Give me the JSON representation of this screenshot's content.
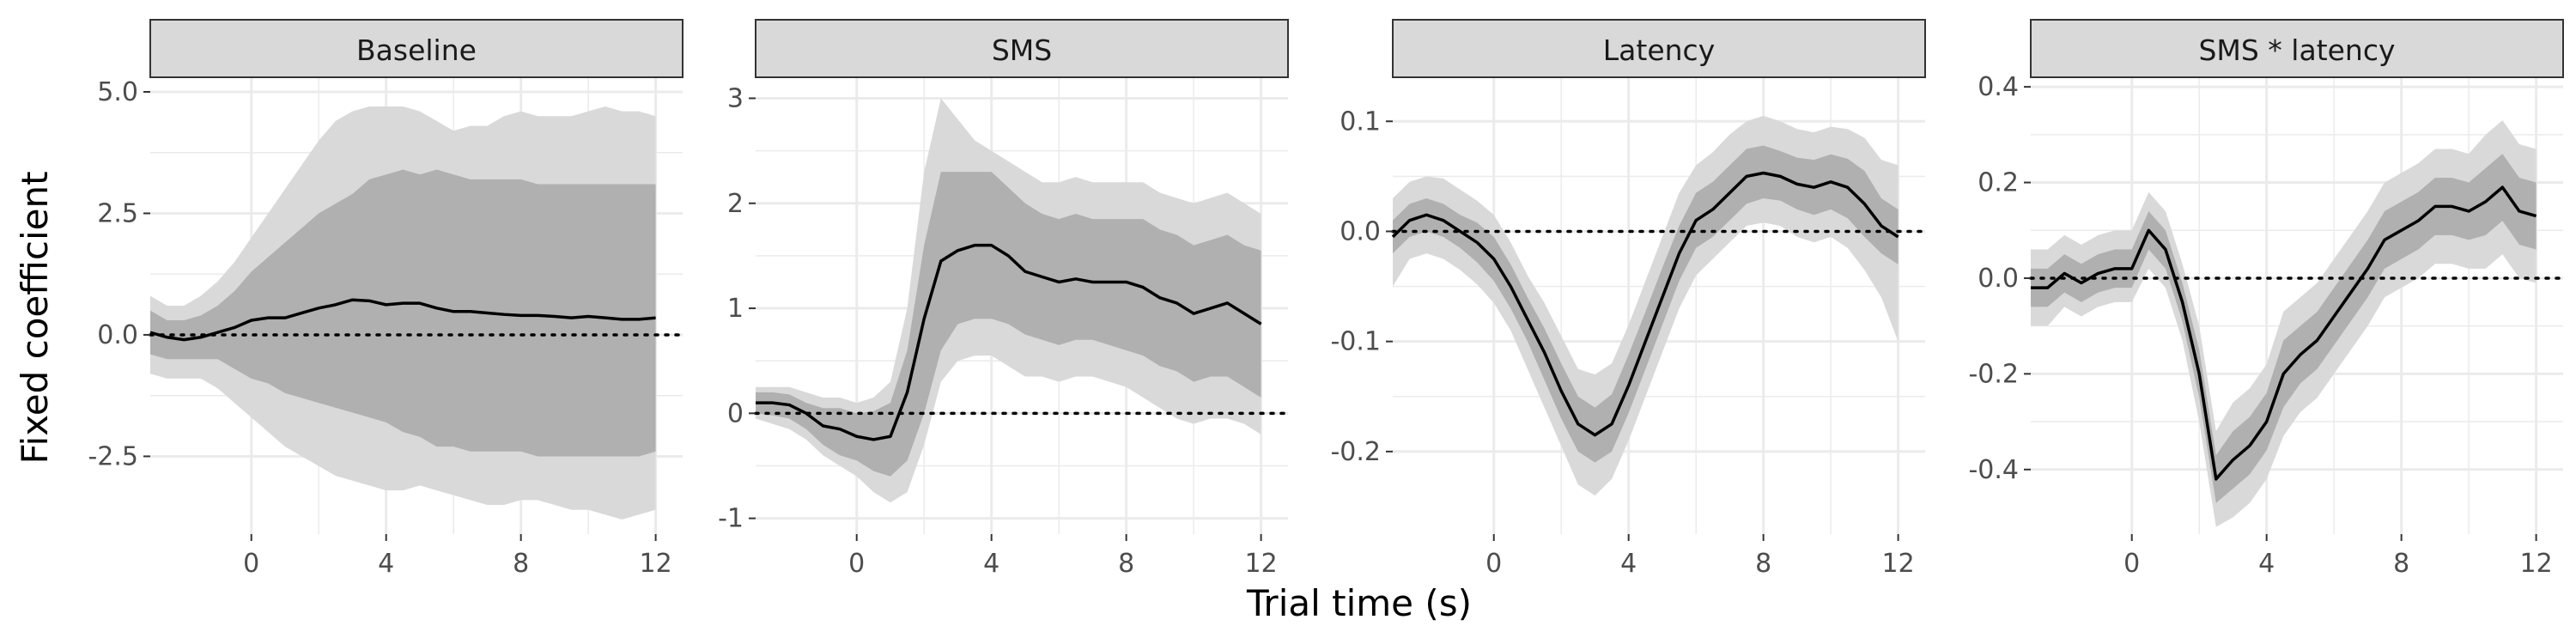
{
  "xlabel": "Trial time (s)",
  "ylabel": "Fixed coefficient",
  "colors": {
    "outer_band": "#d9d9d9",
    "inner_band": "#b0b0b0",
    "line": "#000000",
    "strip_fill": "#d9d9d9",
    "grid": "#ebebeb"
  },
  "chart_data": [
    {
      "type": "line",
      "title": "Baseline",
      "xlim": [
        -3,
        12.8
      ],
      "ylim": [
        -4.1,
        5.3
      ],
      "x_ticks": [
        0,
        4,
        8,
        12
      ],
      "y_ticks": [
        5.0,
        2.5,
        0.0,
        -2.5
      ],
      "y_tick_labels": [
        "5.0",
        "2.5",
        "0.0",
        "-2.5"
      ],
      "reference_line_y": 0,
      "series": {
        "x": [
          -3,
          -2.5,
          -2,
          -1.5,
          -1,
          -0.5,
          0,
          0.5,
          1,
          1.5,
          2,
          2.5,
          3,
          3.5,
          4,
          4.5,
          5,
          5.5,
          6,
          6.5,
          7,
          7.5,
          8,
          8.5,
          9,
          9.5,
          10,
          10.5,
          11,
          11.5,
          12
        ],
        "y": [
          0.05,
          -0.05,
          -0.1,
          -0.05,
          0.05,
          0.15,
          0.3,
          0.35,
          0.35,
          0.45,
          0.55,
          0.62,
          0.72,
          0.7,
          0.62,
          0.65,
          0.65,
          0.55,
          0.48,
          0.48,
          0.45,
          0.42,
          0.4,
          0.4,
          0.38,
          0.35,
          0.38,
          0.35,
          0.32,
          0.32,
          0.35
        ],
        "inner_lower": [
          -0.4,
          -0.5,
          -0.5,
          -0.5,
          -0.5,
          -0.7,
          -0.9,
          -1.0,
          -1.2,
          -1.3,
          -1.4,
          -1.5,
          -1.6,
          -1.7,
          -1.8,
          -2.0,
          -2.1,
          -2.3,
          -2.3,
          -2.4,
          -2.4,
          -2.4,
          -2.4,
          -2.5,
          -2.5,
          -2.5,
          -2.5,
          -2.5,
          -2.5,
          -2.5,
          -2.4
        ],
        "inner_upper": [
          0.5,
          0.3,
          0.3,
          0.4,
          0.6,
          0.9,
          1.3,
          1.6,
          1.9,
          2.2,
          2.5,
          2.7,
          2.9,
          3.2,
          3.3,
          3.4,
          3.3,
          3.4,
          3.3,
          3.2,
          3.2,
          3.2,
          3.2,
          3.1,
          3.1,
          3.1,
          3.1,
          3.1,
          3.1,
          3.1,
          3.1
        ],
        "outer_lower": [
          -0.8,
          -0.9,
          -0.9,
          -0.9,
          -1.1,
          -1.4,
          -1.7,
          -2.0,
          -2.3,
          -2.5,
          -2.7,
          -2.9,
          -3.0,
          -3.1,
          -3.2,
          -3.2,
          -3.1,
          -3.2,
          -3.3,
          -3.4,
          -3.5,
          -3.5,
          -3.4,
          -3.4,
          -3.5,
          -3.6,
          -3.6,
          -3.7,
          -3.8,
          -3.7,
          -3.6
        ],
        "outer_upper": [
          0.8,
          0.6,
          0.6,
          0.8,
          1.1,
          1.5,
          2.0,
          2.5,
          3.0,
          3.5,
          4.0,
          4.4,
          4.6,
          4.7,
          4.7,
          4.7,
          4.6,
          4.4,
          4.2,
          4.3,
          4.3,
          4.5,
          4.6,
          4.5,
          4.5,
          4.5,
          4.6,
          4.7,
          4.6,
          4.6,
          4.5
        ]
      }
    },
    {
      "type": "line",
      "title": "SMS",
      "xlim": [
        -3,
        12.8
      ],
      "ylim": [
        -1.15,
        3.2
      ],
      "x_ticks": [
        0,
        4,
        8,
        12
      ],
      "y_ticks": [
        3,
        2,
        1,
        0,
        -1
      ],
      "y_tick_labels": [
        "3",
        "2",
        "1",
        "0",
        "-1"
      ],
      "reference_line_y": 0,
      "series": {
        "x": [
          -3,
          -2.5,
          -2,
          -1.5,
          -1,
          -0.5,
          0,
          0.5,
          1,
          1.5,
          2,
          2.5,
          3,
          3.5,
          4,
          4.5,
          5,
          5.5,
          6,
          6.5,
          7,
          7.5,
          8,
          8.5,
          9,
          9.5,
          10,
          10.5,
          11,
          11.5,
          12
        ],
        "y": [
          0.1,
          0.1,
          0.08,
          0.0,
          -0.12,
          -0.15,
          -0.22,
          -0.25,
          -0.22,
          0.2,
          0.9,
          1.45,
          1.55,
          1.6,
          1.6,
          1.5,
          1.35,
          1.3,
          1.25,
          1.28,
          1.25,
          1.25,
          1.25,
          1.2,
          1.1,
          1.05,
          0.95,
          1.0,
          1.05,
          0.95,
          0.85
        ],
        "inner_lower": [
          0.0,
          -0.02,
          -0.05,
          -0.15,
          -0.3,
          -0.4,
          -0.45,
          -0.55,
          -0.6,
          -0.45,
          0.0,
          0.6,
          0.85,
          0.9,
          0.9,
          0.85,
          0.75,
          0.7,
          0.65,
          0.7,
          0.7,
          0.65,
          0.6,
          0.55,
          0.45,
          0.4,
          0.3,
          0.35,
          0.35,
          0.25,
          0.15
        ],
        "inner_upper": [
          0.2,
          0.2,
          0.18,
          0.1,
          0.05,
          0.05,
          0.0,
          0.02,
          0.1,
          0.6,
          1.6,
          2.3,
          2.3,
          2.3,
          2.3,
          2.15,
          2.0,
          1.9,
          1.85,
          1.9,
          1.85,
          1.85,
          1.85,
          1.85,
          1.75,
          1.7,
          1.6,
          1.65,
          1.7,
          1.6,
          1.55
        ],
        "outer_lower": [
          -0.05,
          -0.1,
          -0.15,
          -0.25,
          -0.4,
          -0.5,
          -0.6,
          -0.75,
          -0.85,
          -0.75,
          -0.3,
          0.3,
          0.5,
          0.55,
          0.55,
          0.45,
          0.35,
          0.35,
          0.3,
          0.35,
          0.35,
          0.3,
          0.25,
          0.15,
          0.05,
          -0.05,
          -0.1,
          -0.05,
          -0.05,
          -0.1,
          -0.2
        ],
        "outer_upper": [
          0.25,
          0.25,
          0.25,
          0.2,
          0.15,
          0.15,
          0.1,
          0.15,
          0.3,
          1.0,
          2.3,
          3.0,
          2.8,
          2.6,
          2.5,
          2.4,
          2.3,
          2.2,
          2.2,
          2.25,
          2.2,
          2.2,
          2.2,
          2.2,
          2.1,
          2.05,
          2.0,
          2.05,
          2.1,
          2.0,
          1.9
        ]
      }
    },
    {
      "type": "line",
      "title": "Latency",
      "xlim": [
        -3,
        12.8
      ],
      "ylim": [
        -0.275,
        0.14
      ],
      "x_ticks": [
        0,
        4,
        8,
        12
      ],
      "y_ticks": [
        0.1,
        0.0,
        -0.1,
        -0.2
      ],
      "y_tick_labels": [
        "0.1",
        "0.0",
        "-0.1",
        "-0.2"
      ],
      "reference_line_y": 0,
      "series": {
        "x": [
          -3,
          -2.5,
          -2,
          -1.5,
          -1,
          -0.5,
          0,
          0.5,
          1,
          1.5,
          2,
          2.5,
          3,
          3.5,
          4,
          4.5,
          5,
          5.5,
          6,
          6.5,
          7,
          7.5,
          8,
          8.5,
          9,
          9.5,
          10,
          10.5,
          11,
          11.5,
          12
        ],
        "y": [
          -0.005,
          0.01,
          0.015,
          0.01,
          0.0,
          -0.01,
          -0.025,
          -0.05,
          -0.08,
          -0.11,
          -0.145,
          -0.175,
          -0.185,
          -0.175,
          -0.14,
          -0.1,
          -0.06,
          -0.02,
          0.01,
          0.02,
          0.035,
          0.05,
          0.053,
          0.05,
          0.043,
          0.04,
          0.045,
          0.04,
          0.025,
          0.005,
          -0.005
        ],
        "inner_lower": [
          -0.02,
          -0.005,
          0.0,
          -0.005,
          -0.015,
          -0.028,
          -0.045,
          -0.07,
          -0.1,
          -0.135,
          -0.17,
          -0.2,
          -0.21,
          -0.2,
          -0.165,
          -0.125,
          -0.085,
          -0.045,
          -0.015,
          -0.005,
          0.01,
          0.025,
          0.03,
          0.028,
          0.02,
          0.015,
          0.02,
          0.012,
          -0.005,
          -0.02,
          -0.03
        ],
        "inner_upper": [
          0.01,
          0.025,
          0.03,
          0.025,
          0.015,
          0.008,
          -0.005,
          -0.03,
          -0.06,
          -0.088,
          -0.12,
          -0.15,
          -0.16,
          -0.148,
          -0.112,
          -0.073,
          -0.033,
          0.005,
          0.035,
          0.045,
          0.06,
          0.075,
          0.078,
          0.073,
          0.067,
          0.065,
          0.07,
          0.066,
          0.055,
          0.03,
          0.02
        ],
        "outer_lower": [
          -0.05,
          -0.025,
          -0.02,
          -0.025,
          -0.035,
          -0.048,
          -0.065,
          -0.09,
          -0.125,
          -0.16,
          -0.195,
          -0.23,
          -0.24,
          -0.225,
          -0.19,
          -0.15,
          -0.11,
          -0.07,
          -0.04,
          -0.025,
          -0.01,
          0.005,
          0.008,
          0.005,
          -0.005,
          -0.01,
          -0.005,
          -0.015,
          -0.035,
          -0.06,
          -0.1
        ],
        "outer_upper": [
          0.03,
          0.045,
          0.05,
          0.048,
          0.038,
          0.028,
          0.015,
          -0.01,
          -0.04,
          -0.065,
          -0.095,
          -0.125,
          -0.13,
          -0.12,
          -0.085,
          -0.045,
          -0.005,
          0.035,
          0.06,
          0.072,
          0.088,
          0.1,
          0.105,
          0.1,
          0.093,
          0.09,
          0.095,
          0.093,
          0.085,
          0.065,
          0.06
        ]
      }
    },
    {
      "type": "line",
      "title": "SMS * latency",
      "xlim": [
        -3,
        12.8
      ],
      "ylim": [
        -0.535,
        0.42
      ],
      "x_ticks": [
        0,
        4,
        8,
        12
      ],
      "y_ticks": [
        0.4,
        0.2,
        0.0,
        -0.2,
        -0.4
      ],
      "y_tick_labels": [
        "0.4",
        "0.2",
        "0.0",
        "-0.2",
        "-0.4"
      ],
      "reference_line_y": 0,
      "series": {
        "x": [
          -3,
          -2.5,
          -2,
          -1.5,
          -1,
          -0.5,
          0,
          0.5,
          1,
          1.5,
          2,
          2.5,
          3,
          3.5,
          4,
          4.5,
          5,
          5.5,
          6,
          6.5,
          7,
          7.5,
          8,
          8.5,
          9,
          9.5,
          10,
          10.5,
          11,
          11.5,
          12
        ],
        "y": [
          -0.02,
          -0.02,
          0.01,
          -0.01,
          0.01,
          0.02,
          0.02,
          0.1,
          0.06,
          -0.05,
          -0.2,
          -0.42,
          -0.38,
          -0.35,
          -0.3,
          -0.2,
          -0.16,
          -0.13,
          -0.08,
          -0.03,
          0.02,
          0.08,
          0.1,
          0.12,
          0.15,
          0.15,
          0.14,
          0.16,
          0.19,
          0.14,
          0.13
        ],
        "inner_lower": [
          -0.06,
          -0.06,
          -0.03,
          -0.05,
          -0.03,
          -0.02,
          -0.02,
          0.06,
          0.02,
          -0.09,
          -0.25,
          -0.47,
          -0.44,
          -0.41,
          -0.36,
          -0.27,
          -0.22,
          -0.19,
          -0.14,
          -0.09,
          -0.04,
          0.02,
          0.04,
          0.06,
          0.09,
          0.09,
          0.08,
          0.09,
          0.12,
          0.07,
          0.06
        ],
        "inner_upper": [
          0.02,
          0.02,
          0.05,
          0.03,
          0.05,
          0.06,
          0.06,
          0.14,
          0.1,
          -0.01,
          -0.15,
          -0.37,
          -0.32,
          -0.29,
          -0.24,
          -0.13,
          -0.1,
          -0.07,
          -0.02,
          0.03,
          0.08,
          0.14,
          0.16,
          0.18,
          0.21,
          0.21,
          0.2,
          0.23,
          0.26,
          0.21,
          0.2
        ],
        "outer_lower": [
          -0.1,
          -0.1,
          -0.06,
          -0.08,
          -0.06,
          -0.05,
          -0.05,
          0.02,
          -0.02,
          -0.13,
          -0.3,
          -0.52,
          -0.5,
          -0.47,
          -0.42,
          -0.33,
          -0.28,
          -0.25,
          -0.2,
          -0.15,
          -0.1,
          -0.04,
          -0.02,
          0.0,
          0.03,
          0.03,
          0.02,
          0.02,
          0.05,
          0.0,
          -0.01
        ],
        "outer_upper": [
          0.06,
          0.06,
          0.09,
          0.07,
          0.09,
          0.1,
          0.1,
          0.18,
          0.14,
          0.03,
          -0.1,
          -0.32,
          -0.26,
          -0.23,
          -0.18,
          -0.07,
          -0.04,
          -0.01,
          0.04,
          0.09,
          0.14,
          0.2,
          0.22,
          0.24,
          0.27,
          0.27,
          0.26,
          0.3,
          0.33,
          0.28,
          0.27
        ]
      }
    }
  ]
}
